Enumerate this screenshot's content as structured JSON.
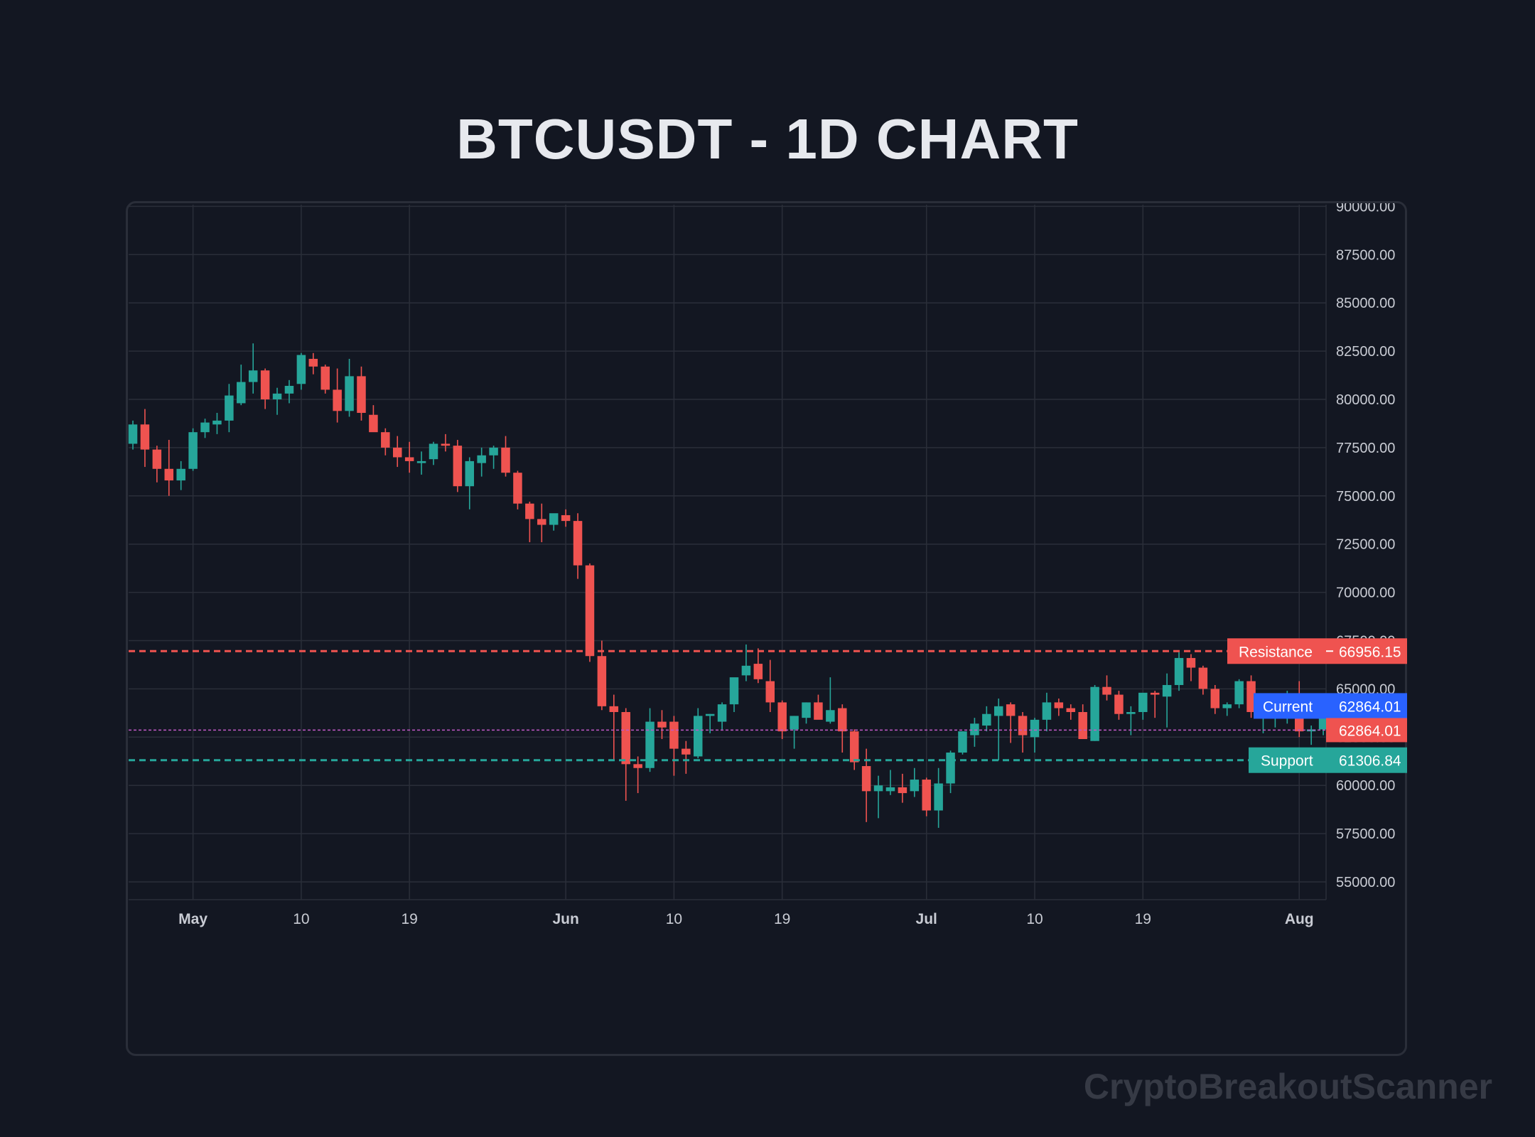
{
  "title": "BTCUSDT - 1D CHART",
  "watermark": "CryptoBreakoutScanner",
  "colors": {
    "background": "#131722",
    "grid": "#2a2e39",
    "up": "#26a69a",
    "down": "#ef5350",
    "current_tag": "#2962ff",
    "current_line": "#c158c8"
  },
  "chart_data": {
    "type": "candlestick",
    "title": "BTCUSDT - 1D CHART",
    "x_start": "2024-04-26",
    "x_ticks": [
      {
        "date": "2024-05-01",
        "label": "May",
        "bold": true
      },
      {
        "date": "2024-05-10",
        "label": "10",
        "bold": false
      },
      {
        "date": "2024-05-19",
        "label": "19",
        "bold": false
      },
      {
        "date": "2024-06-01",
        "label": "Jun",
        "bold": true
      },
      {
        "date": "2024-06-10",
        "label": "10",
        "bold": false
      },
      {
        "date": "2024-06-19",
        "label": "19",
        "bold": false
      },
      {
        "date": "2024-07-01",
        "label": "Jul",
        "bold": true
      },
      {
        "date": "2024-07-10",
        "label": "10",
        "bold": false
      },
      {
        "date": "2024-07-19",
        "label": "19",
        "bold": false
      },
      {
        "date": "2024-08-01",
        "label": "Aug",
        "bold": true
      }
    ],
    "y_ticks": [
      "55000.00",
      "57500.00",
      "60000.00",
      "62500.00",
      "65000.00",
      "67500.00",
      "70000.00",
      "72500.00",
      "75000.00",
      "77500.00",
      "80000.00",
      "82500.00",
      "85000.00",
      "87500.00",
      "90000.00"
    ],
    "ylim": [
      54200,
      90000
    ],
    "grid": true,
    "ohlc": [
      [
        77700,
        78900,
        77400,
        78700
      ],
      [
        78700,
        79500,
        76500,
        77400
      ],
      [
        77400,
        77600,
        75700,
        76400
      ],
      [
        76400,
        77900,
        75000,
        75800
      ],
      [
        75800,
        76800,
        75300,
        76400
      ],
      [
        76400,
        78500,
        76300,
        78300
      ],
      [
        78300,
        79000,
        78000,
        78800
      ],
      [
        78700,
        79300,
        78200,
        78900
      ],
      [
        78900,
        80800,
        78300,
        80200
      ],
      [
        79800,
        81800,
        79700,
        80900
      ],
      [
        80900,
        82900,
        80300,
        81500
      ],
      [
        81500,
        81600,
        79500,
        80000
      ],
      [
        80000,
        80600,
        79200,
        80300
      ],
      [
        80300,
        81000,
        79800,
        80700
      ],
      [
        80800,
        82400,
        80500,
        82300
      ],
      [
        82100,
        82400,
        81300,
        81700
      ],
      [
        81700,
        81800,
        80300,
        80500
      ],
      [
        80500,
        81600,
        78800,
        79400
      ],
      [
        79400,
        82100,
        79100,
        81200
      ],
      [
        81200,
        81700,
        78900,
        79300
      ],
      [
        79200,
        79700,
        78500,
        78300
      ],
      [
        78300,
        78500,
        77100,
        77500
      ],
      [
        77500,
        78100,
        76500,
        77000
      ],
      [
        77000,
        77800,
        76200,
        76800
      ],
      [
        76700,
        77300,
        76100,
        76800
      ],
      [
        76900,
        77800,
        76600,
        77700
      ],
      [
        77700,
        78200,
        77300,
        77600
      ],
      [
        77600,
        77900,
        75200,
        75500
      ],
      [
        75500,
        77000,
        74300,
        76800
      ],
      [
        76700,
        77500,
        76000,
        77100
      ],
      [
        77100,
        77600,
        76400,
        77500
      ],
      [
        77500,
        78100,
        76000,
        76200
      ],
      [
        76200,
        76300,
        74300,
        74600
      ],
      [
        74600,
        74700,
        72600,
        73800
      ],
      [
        73800,
        74600,
        72600,
        73500
      ],
      [
        73500,
        74000,
        73200,
        74100
      ],
      [
        74000,
        74300,
        73400,
        73700
      ],
      [
        73700,
        74100,
        70700,
        71400
      ],
      [
        71400,
        71500,
        66400,
        66700
      ],
      [
        66700,
        67500,
        63900,
        64100
      ],
      [
        64100,
        64700,
        61300,
        63800
      ],
      [
        63800,
        64000,
        59200,
        61100
      ],
      [
        61100,
        61500,
        59600,
        60900
      ],
      [
        60900,
        64000,
        60700,
        63300
      ],
      [
        63300,
        63900,
        62400,
        63000
      ],
      [
        63300,
        63600,
        60500,
        61900
      ],
      [
        61900,
        62300,
        60600,
        61600
      ],
      [
        61500,
        64000,
        61400,
        63600
      ],
      [
        63600,
        63700,
        62700,
        63700
      ],
      [
        63300,
        64300,
        62900,
        64200
      ],
      [
        64200,
        65400,
        63800,
        65600
      ],
      [
        65700,
        67300,
        65400,
        66200
      ],
      [
        66300,
        67100,
        65300,
        65500
      ],
      [
        65400,
        66500,
        63800,
        64300
      ],
      [
        64300,
        64400,
        62400,
        62800
      ],
      [
        62900,
        63600,
        61900,
        63600
      ],
      [
        63500,
        64300,
        63200,
        64300
      ],
      [
        64300,
        64700,
        63500,
        63400
      ],
      [
        63300,
        65600,
        63200,
        63900
      ],
      [
        64000,
        64200,
        61700,
        62800
      ],
      [
        62800,
        62900,
        60800,
        61200
      ],
      [
        61000,
        61900,
        58100,
        59700
      ],
      [
        59700,
        60500,
        58300,
        60000
      ],
      [
        59700,
        60800,
        59500,
        59900
      ],
      [
        59900,
        60600,
        59100,
        59600
      ],
      [
        59700,
        60900,
        59400,
        60300
      ],
      [
        60300,
        60400,
        58400,
        58700
      ],
      [
        58700,
        60900,
        57800,
        60100
      ],
      [
        60100,
        61800,
        59600,
        61700
      ],
      [
        61700,
        62800,
        61600,
        62800
      ],
      [
        62600,
        63500,
        62000,
        63200
      ],
      [
        63100,
        64100,
        62800,
        63700
      ],
      [
        63600,
        64500,
        61300,
        64100
      ],
      [
        64200,
        64300,
        62200,
        63600
      ],
      [
        63600,
        63800,
        61700,
        62600
      ],
      [
        62500,
        63500,
        61700,
        63400
      ],
      [
        63400,
        64800,
        62800,
        64300
      ],
      [
        64300,
        64500,
        63600,
        64000
      ],
      [
        64000,
        64200,
        63400,
        63800
      ],
      [
        63800,
        64200,
        62400,
        62400
      ],
      [
        62300,
        65200,
        62300,
        65100
      ],
      [
        65100,
        65700,
        64400,
        64700
      ],
      [
        64700,
        64900,
        63400,
        63700
      ],
      [
        63700,
        64100,
        62600,
        63800
      ],
      [
        63800,
        64700,
        63400,
        64800
      ],
      [
        64800,
        64900,
        63500,
        64700
      ],
      [
        64600,
        65800,
        63000,
        65200
      ],
      [
        65200,
        66900,
        64900,
        66600
      ],
      [
        66600,
        66800,
        65400,
        66100
      ],
      [
        66100,
        66200,
        64700,
        65000
      ],
      [
        65000,
        65200,
        63700,
        64000
      ],
      [
        64000,
        64300,
        63600,
        64200
      ],
      [
        64200,
        65500,
        64000,
        65400
      ],
      [
        65400,
        65700,
        63500,
        63800
      ],
      [
        63800,
        64000,
        62700,
        63900
      ],
      [
        63800,
        63900,
        63000,
        63900
      ],
      [
        63900,
        64900,
        63200,
        64700
      ],
      [
        64600,
        65400,
        62500,
        62800
      ],
      [
        62800,
        63100,
        62100,
        62900
      ],
      [
        62900,
        64300,
        62600,
        63600
      ],
      [
        63500,
        63500,
        62800,
        62864.01
      ]
    ],
    "levels": {
      "resistance": {
        "label": "Resistance",
        "value": 66956.15,
        "display": "66956.15"
      },
      "current": {
        "label": "Current",
        "value": 62864.01,
        "display": "62864.01"
      },
      "last_price": {
        "value": 62864.01,
        "display": "62864.01"
      },
      "support": {
        "label": "Support",
        "value": 61306.84,
        "display": "61306.84"
      }
    }
  }
}
